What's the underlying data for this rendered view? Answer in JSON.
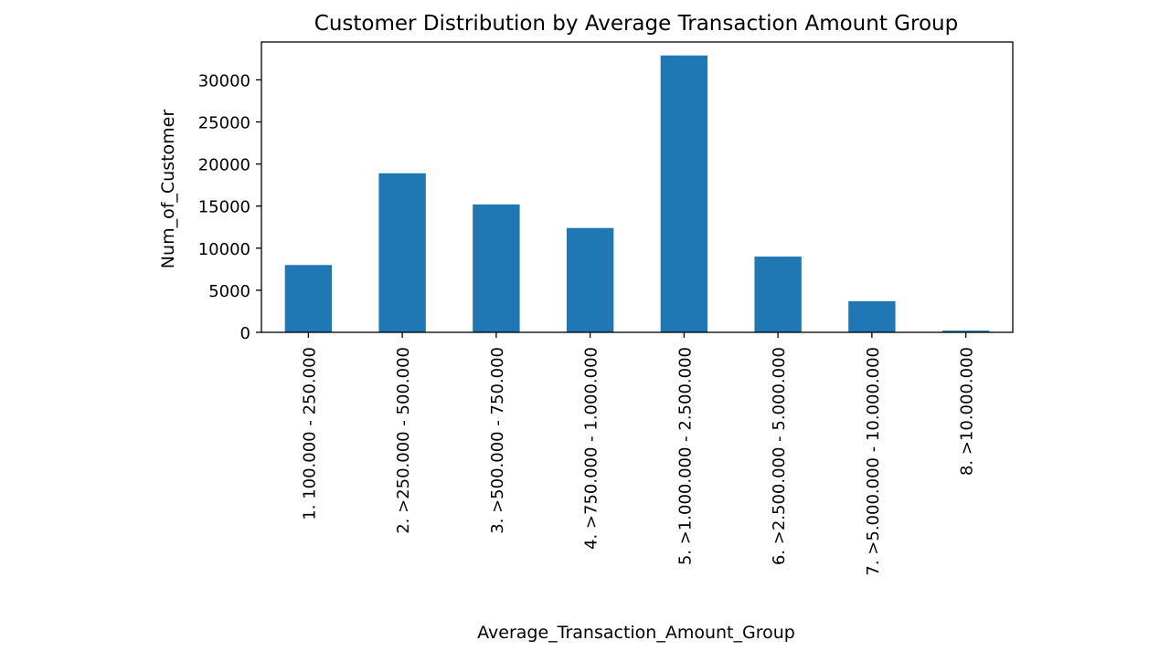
{
  "chart_data": {
    "type": "bar",
    "title": "Customer Distribution by Average Transaction Amount Group",
    "xlabel": "Average_Transaction_Amount_Group",
    "ylabel": "Num_of_Customer",
    "categories": [
      "1. 100.000 - 250.000",
      "2. >250.000 - 500.000",
      "3. >500.000 - 750.000",
      "4. >750.000 - 1.000.000",
      "5. >1.000.000 - 2.500.000",
      "6. >2.500.000 - 5.000.000",
      "7. >5.000.000 - 10.000.000",
      "8. >10.000.000"
    ],
    "values": [
      8000,
      18900,
      15200,
      12400,
      32900,
      9000,
      3700,
      200
    ],
    "ylim": [
      0,
      34500
    ],
    "yticks": [
      0,
      5000,
      10000,
      15000,
      20000,
      25000,
      30000
    ],
    "ytick_labels": [
      "0",
      "5000",
      "10000",
      "15000",
      "20000",
      "25000",
      "30000"
    ],
    "grid": false,
    "legend": "none",
    "bar_color": "#1f77b4"
  }
}
